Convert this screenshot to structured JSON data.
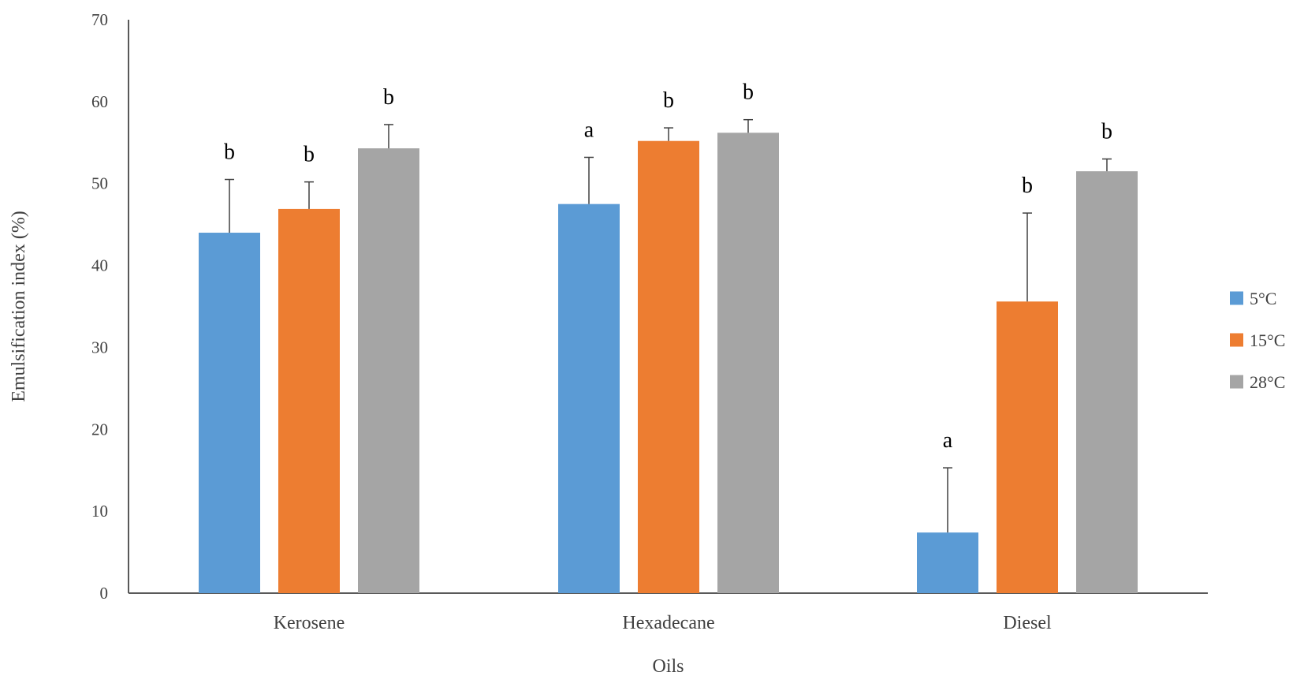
{
  "chart_data": {
    "type": "bar",
    "categories": [
      "Kerosene",
      "Hexadecane",
      "Diesel"
    ],
    "series": [
      {
        "name": "5°C",
        "color": "#5b9bd5",
        "values": [
          44,
          47.5,
          7.4
        ],
        "errors": [
          6.5,
          5.7,
          7.9
        ],
        "letters": [
          "b",
          "a",
          "a"
        ]
      },
      {
        "name": "15°C",
        "color": "#ed7d31",
        "values": [
          46.9,
          55.2,
          35.6
        ],
        "errors": [
          3.3,
          1.6,
          10.8
        ],
        "letters": [
          "b",
          "b",
          "b"
        ]
      },
      {
        "name": "28°C",
        "color": "#a5a5a5",
        "values": [
          54.3,
          56.2,
          51.5
        ],
        "errors": [
          2.9,
          1.6,
          1.5
        ],
        "letters": [
          "b",
          "b",
          "b"
        ]
      }
    ],
    "xlabel": "Oils",
    "ylabel": "Emulsification index (%)",
    "ylim": [
      0,
      70
    ],
    "yticks": [
      0,
      10,
      20,
      30,
      40,
      50,
      60,
      70
    ],
    "grid": false,
    "legend_position": "right"
  }
}
